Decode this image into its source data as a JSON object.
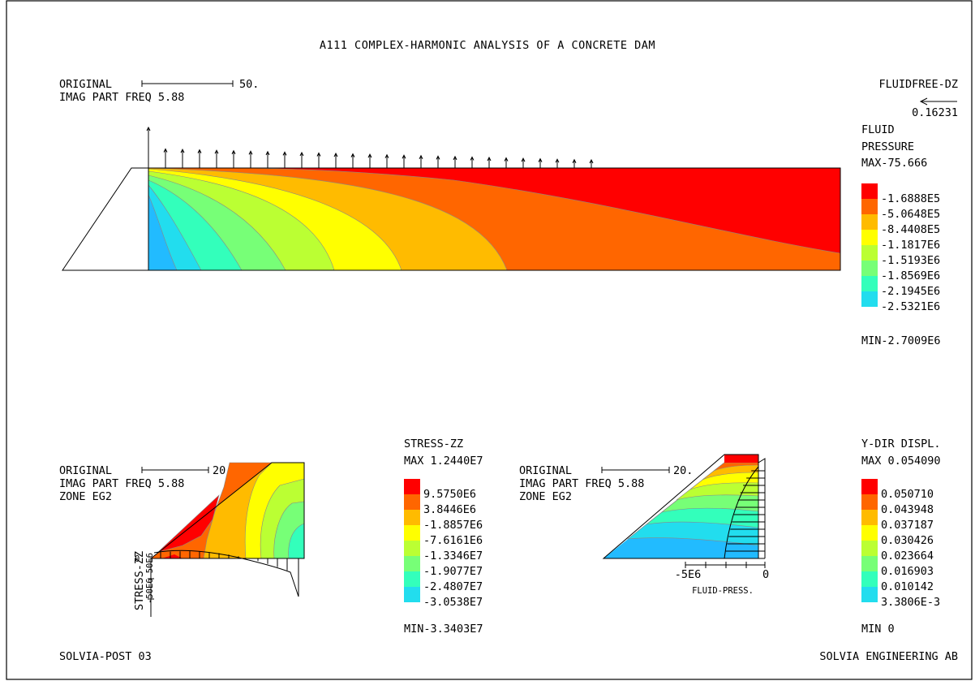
{
  "title": "A111 COMPLEX-HARMONIC ANALYSIS OF A CONCRETE DAM",
  "top": {
    "original_label": "ORIGINAL",
    "scale_value": "50.",
    "freq_label": "IMAG PART FREQ 5.88",
    "vector_title": "FLUIDFREE-DZ",
    "vector_value": "0.16231",
    "legend": {
      "title_line1": "FLUID",
      "title_line2": "PRESSURE",
      "max": "MAX-75.666",
      "min": "MIN-2.7009E6",
      "levels": [
        "-1.6888E5",
        "-5.0648E5",
        "-8.4408E5",
        "-1.1817E6",
        "-1.5193E6",
        "-1.8569E6",
        "-2.1945E6",
        "-2.5321E6"
      ]
    }
  },
  "bottom_left": {
    "original_label": "ORIGINAL",
    "scale_value": "20.",
    "freq_label": "IMAG PART FREQ 5.88",
    "zone_label": "ZONE EG2",
    "axis_label": "STRESS-ZZ",
    "tick_upper": "50E6",
    "tick_zero": "0",
    "tick_lower": "-50E6",
    "legend": {
      "title": "STRESS-ZZ",
      "max": "MAX 1.2440E7",
      "min": "MIN-3.3403E7",
      "levels": [
        "9.5750E6",
        "3.8446E6",
        "-1.8857E6",
        "-7.6161E6",
        "-1.3346E7",
        "-1.9077E7",
        "-2.4807E7",
        "-3.0538E7"
      ]
    }
  },
  "bottom_right": {
    "original_label": "ORIGINAL",
    "scale_value": "20.",
    "freq_label": "IMAG PART FREQ 5.88",
    "zone_label": "ZONE EG2",
    "axis_label": "FLUID-PRESS.",
    "tick_left": "-5E6",
    "tick_right": "0",
    "legend": {
      "title": "Y-DIR DISPL.",
      "max": "MAX 0.054090",
      "min": "MIN 0",
      "levels": [
        "0.050710",
        "0.043948",
        "0.037187",
        "0.030426",
        "0.023664",
        "0.016903",
        "0.010142",
        "3.3806E-3"
      ]
    }
  },
  "footer": {
    "left": "SOLVIA-POST 03",
    "right": "SOLVIA ENGINEERING AB"
  },
  "colors": {
    "c1": "#ff0000",
    "c2": "#ff6600",
    "c3": "#ffbb00",
    "c4": "#ffff00",
    "c5": "#bbff33",
    "c6": "#77ff77",
    "c7": "#33ffbb",
    "c8": "#22ddee",
    "c9": "#22bbff"
  }
}
